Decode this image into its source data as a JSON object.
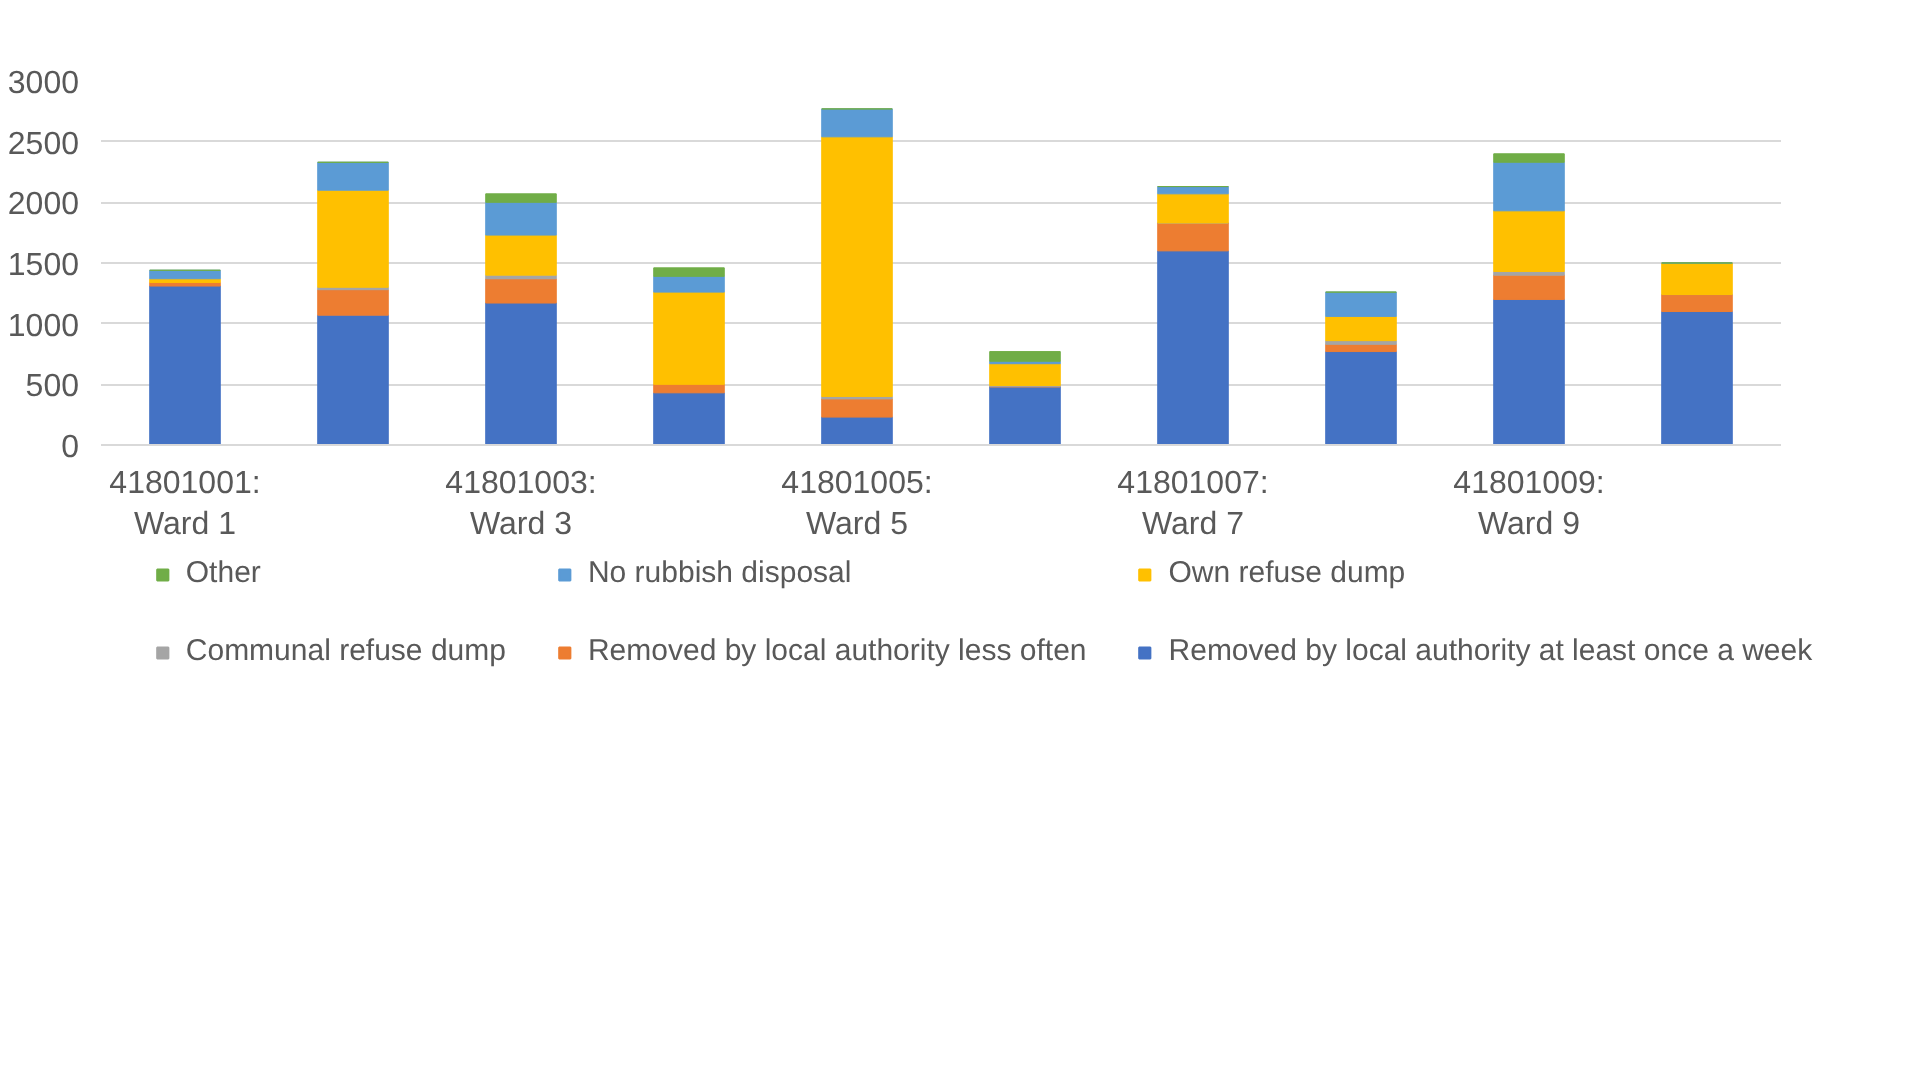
{
  "chart_data": {
    "type": "bar",
    "stacked": true,
    "categories": [
      "41801001: Ward 1",
      null,
      "41801003: Ward 3",
      null,
      "41801005: Ward 5",
      null,
      "41801007: Ward 7",
      null,
      "41801009: Ward 9",
      null
    ],
    "series": [
      {
        "name": "Removed by local authority at least once a week",
        "color": "#4472c4",
        "values": [
          1310,
          1070,
          1170,
          430,
          230,
          480,
          1600,
          770,
          1200,
          1100
        ]
      },
      {
        "name": "Removed by local authority less often",
        "color": "#ed7d31",
        "values": [
          30,
          210,
          200,
          70,
          150,
          0,
          230,
          60,
          200,
          140
        ]
      },
      {
        "name": "Communal refuse dump",
        "color": "#a5a5a5",
        "values": [
          null,
          20,
          30,
          null,
          20,
          10,
          0,
          30,
          30,
          0
        ]
      },
      {
        "name": "Own refuse dump",
        "color": "#ffc000",
        "values": [
          30,
          800,
          330,
          760,
          2140,
          180,
          240,
          200,
          500,
          260
        ]
      },
      {
        "name": "No rubbish disposal",
        "color": "#5b9bd5",
        "values": [
          70,
          230,
          270,
          130,
          230,
          20,
          60,
          200,
          400,
          0
        ]
      },
      {
        "name": "Other",
        "color": "#70ad47",
        "values": [
          0,
          0,
          70,
          70,
          0,
          80,
          0,
          0,
          70,
          0
        ]
      }
    ],
    "ylim": [
      0,
      3000
    ],
    "yticks": [
      0,
      500,
      1000,
      1500,
      2000,
      2500,
      3000
    ],
    "grid": "y",
    "legend": "bottom"
  }
}
